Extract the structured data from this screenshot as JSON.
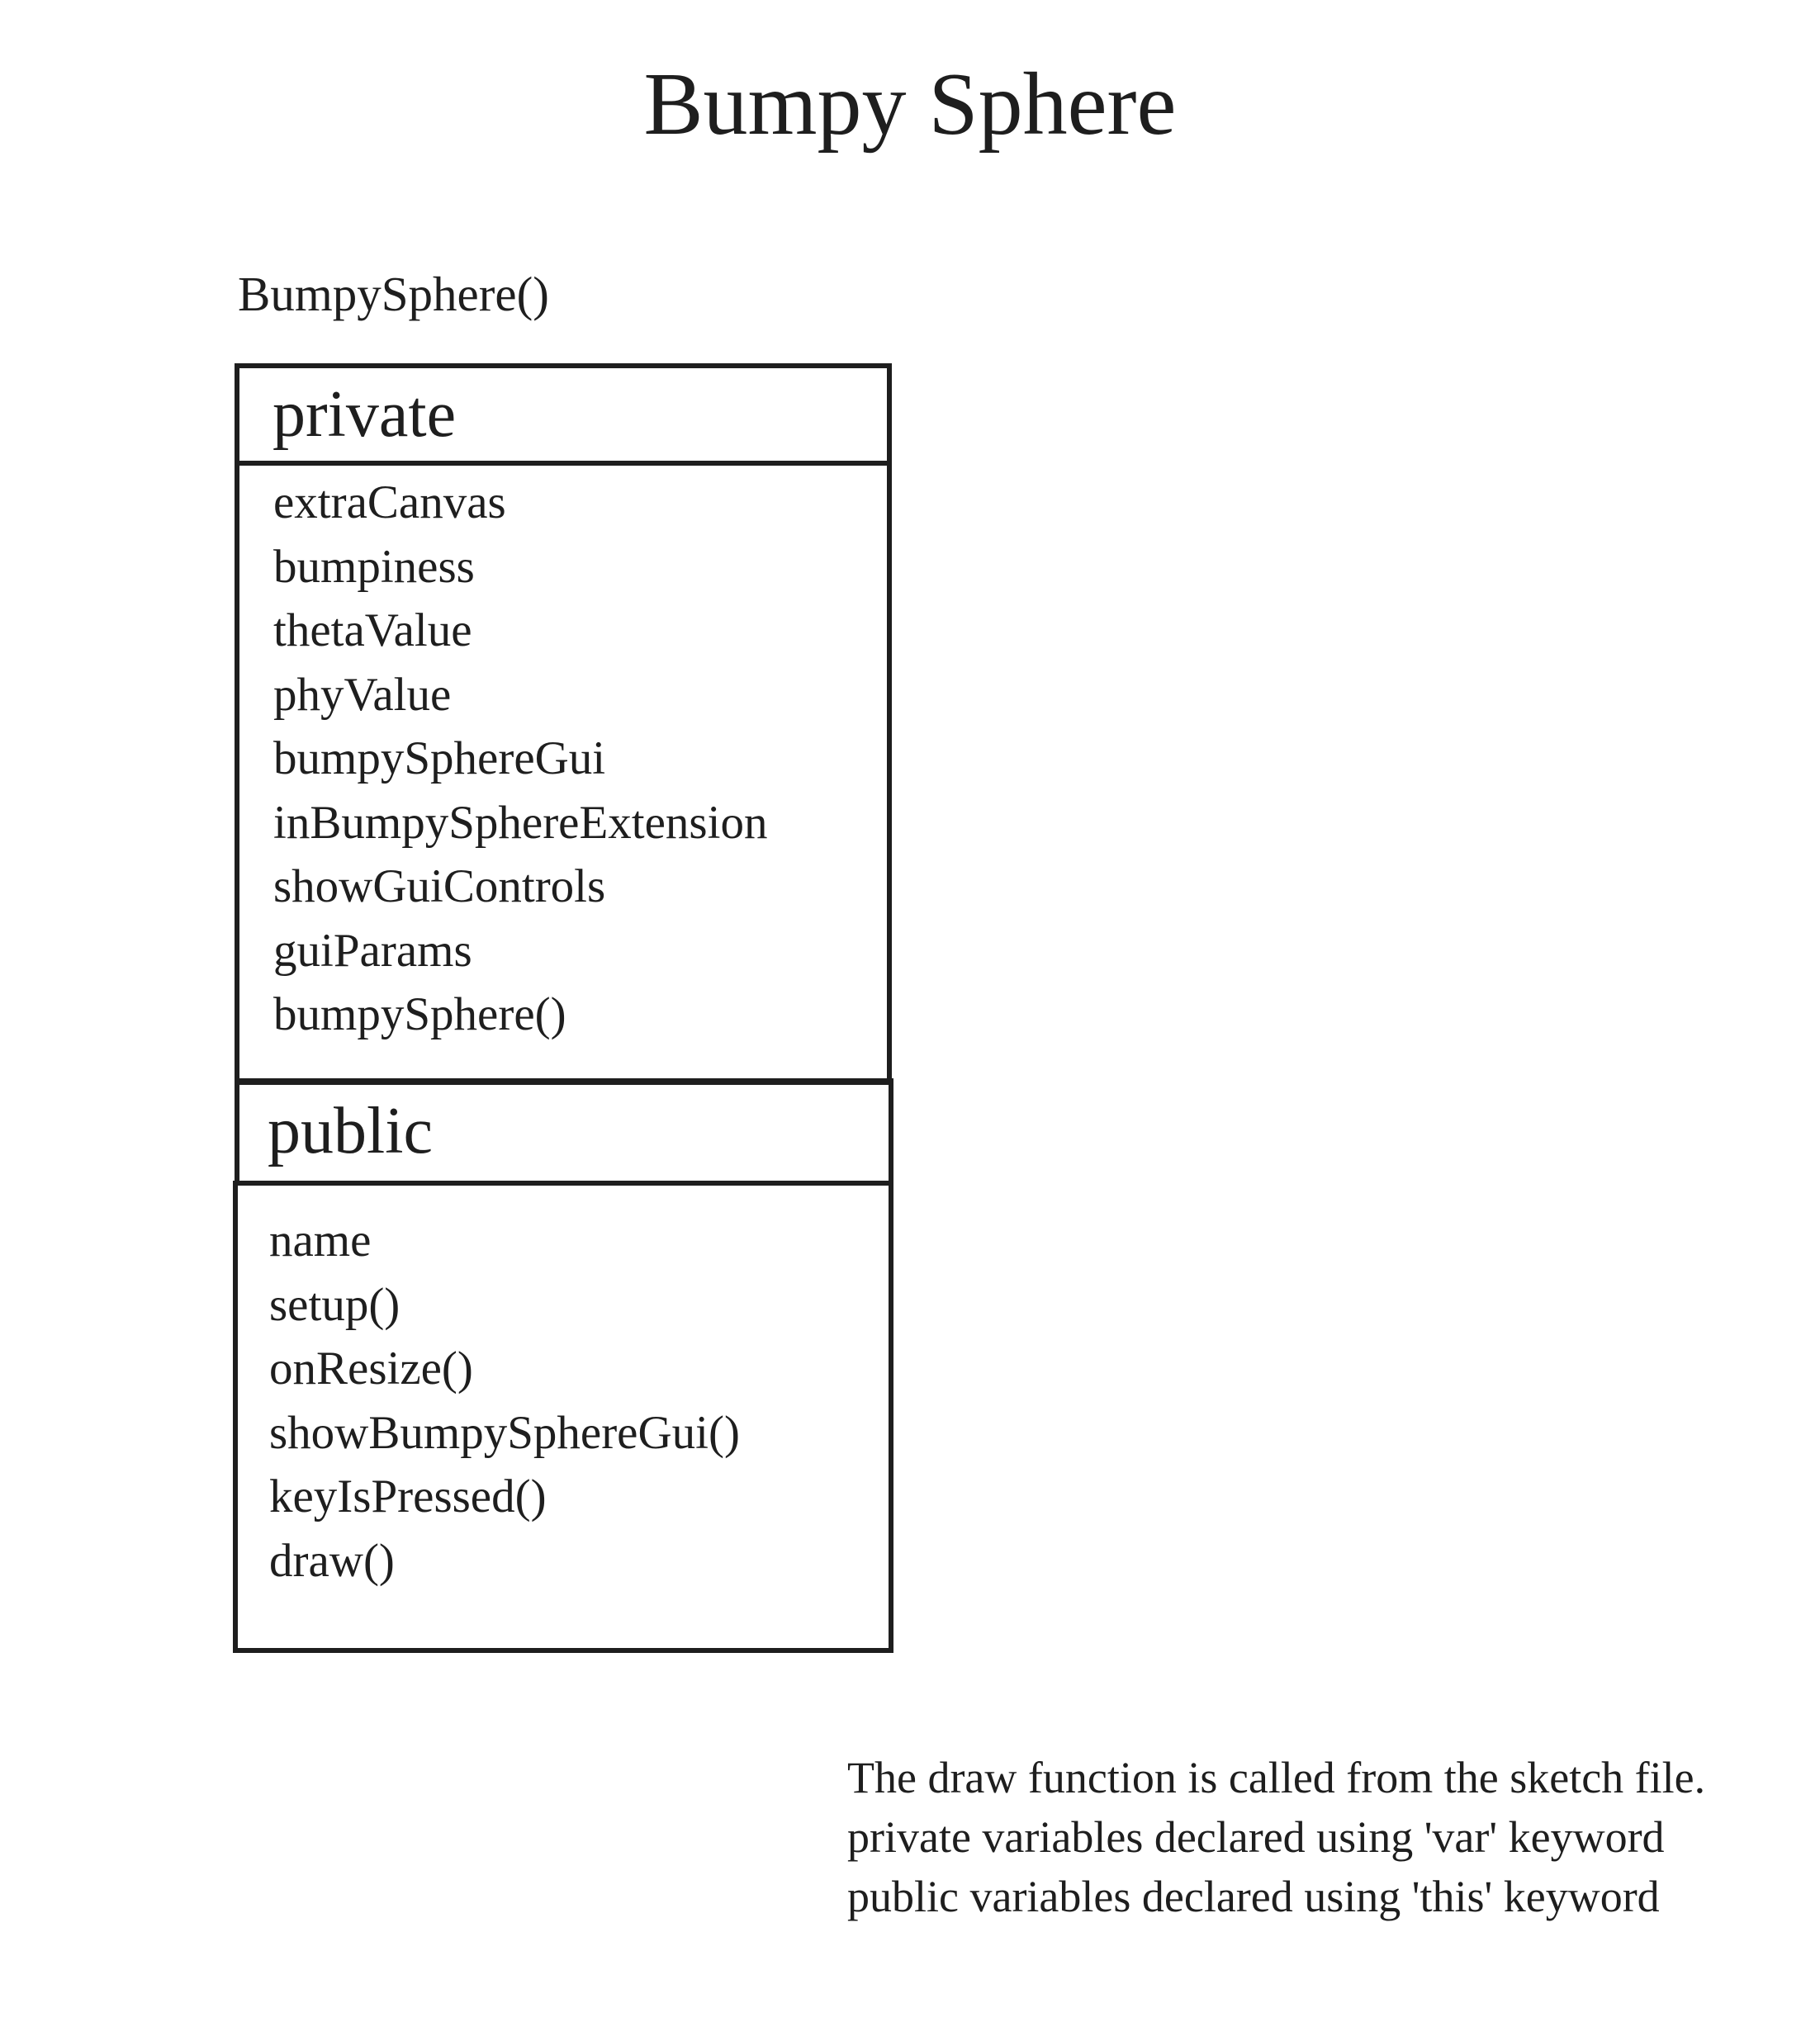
{
  "title": "Bumpy Sphere",
  "constructor_label": "BumpySphere()",
  "private_section": {
    "label": "private",
    "members": [
      "extraCanvas",
      "bumpiness",
      "thetaValue",
      "phyValue",
      "bumpySphereGui",
      "inBumpySphereExtension",
      "showGuiControls",
      "guiParams",
      "bumpySphere()"
    ]
  },
  "public_section": {
    "label": "public",
    "members": [
      "name",
      "setup()",
      "onResize()",
      "showBumpySphereGui()",
      "keyIsPressed()",
      "draw()"
    ]
  },
  "notes": [
    "The draw function is called from the sketch file.",
    "private variables declared using 'var' keyword",
    "public variables declared using 'this' keyword"
  ]
}
